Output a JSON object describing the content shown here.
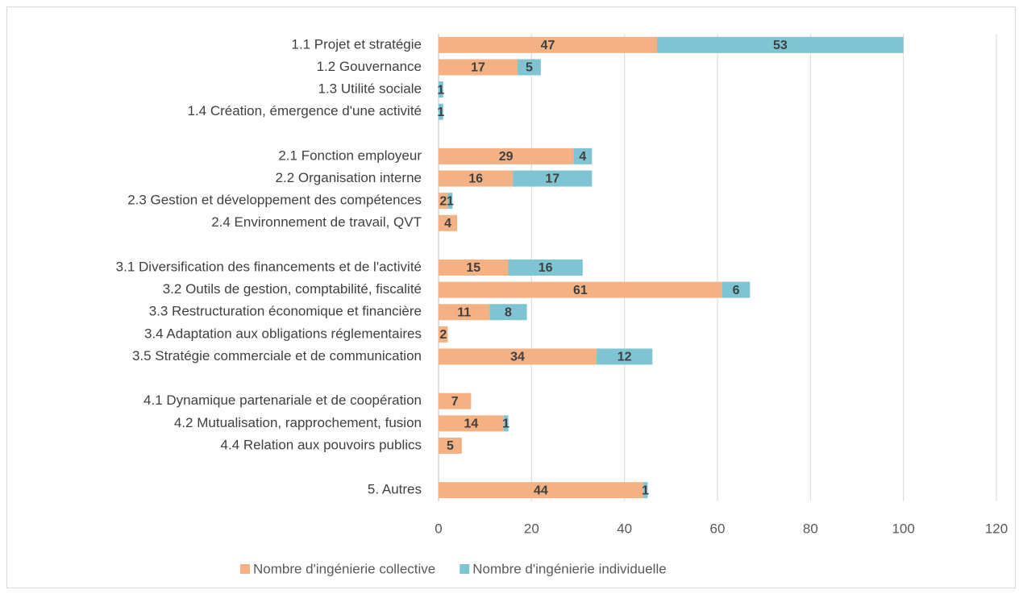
{
  "chart_data": {
    "type": "stacked-barh",
    "categories": [
      "1.1 Projet et stratégie",
      "1.2 Gouvernance",
      "1.3 Utilité sociale",
      "1.4 Création, émergence d'une activité",
      null,
      "2.1 Fonction employeur",
      "2.2 Organisation interne",
      "2.3 Gestion et développement des compétences",
      "2.4 Environnement de travail, QVT",
      null,
      "3.1 Diversification des financements et de l'activité",
      "3.2 Outils de gestion, comptabilité, fiscalité",
      "3.3 Restructuration économique et financière",
      "3.4 Adaptation aux obligations réglementaires",
      "3.5 Stratégie commerciale et de communication",
      null,
      "4.1 Dynamique partenariale et de coopération",
      "4.2 Mutualisation, rapprochement, fusion",
      "4.4 Relation aux pouvoirs publics",
      null,
      "5. Autres"
    ],
    "series": [
      {
        "name": "Nombre d'ingénierie collective",
        "color": "#f4b183",
        "values": [
          47,
          17,
          null,
          null,
          null,
          29,
          16,
          2,
          4,
          null,
          15,
          61,
          11,
          2,
          34,
          null,
          7,
          14,
          5,
          null,
          44
        ]
      },
      {
        "name": "Nombre d'ingénierie individuelle",
        "color": "#7fc4d3",
        "values": [
          53,
          5,
          1,
          1,
          null,
          4,
          17,
          1,
          null,
          null,
          16,
          6,
          8,
          null,
          12,
          null,
          null,
          1,
          null,
          null,
          1
        ]
      }
    ],
    "xlim": [
      0,
      120
    ],
    "xticks": [
      0,
      20,
      40,
      60,
      80,
      100,
      120
    ],
    "grid": true,
    "legend": "bottom"
  }
}
